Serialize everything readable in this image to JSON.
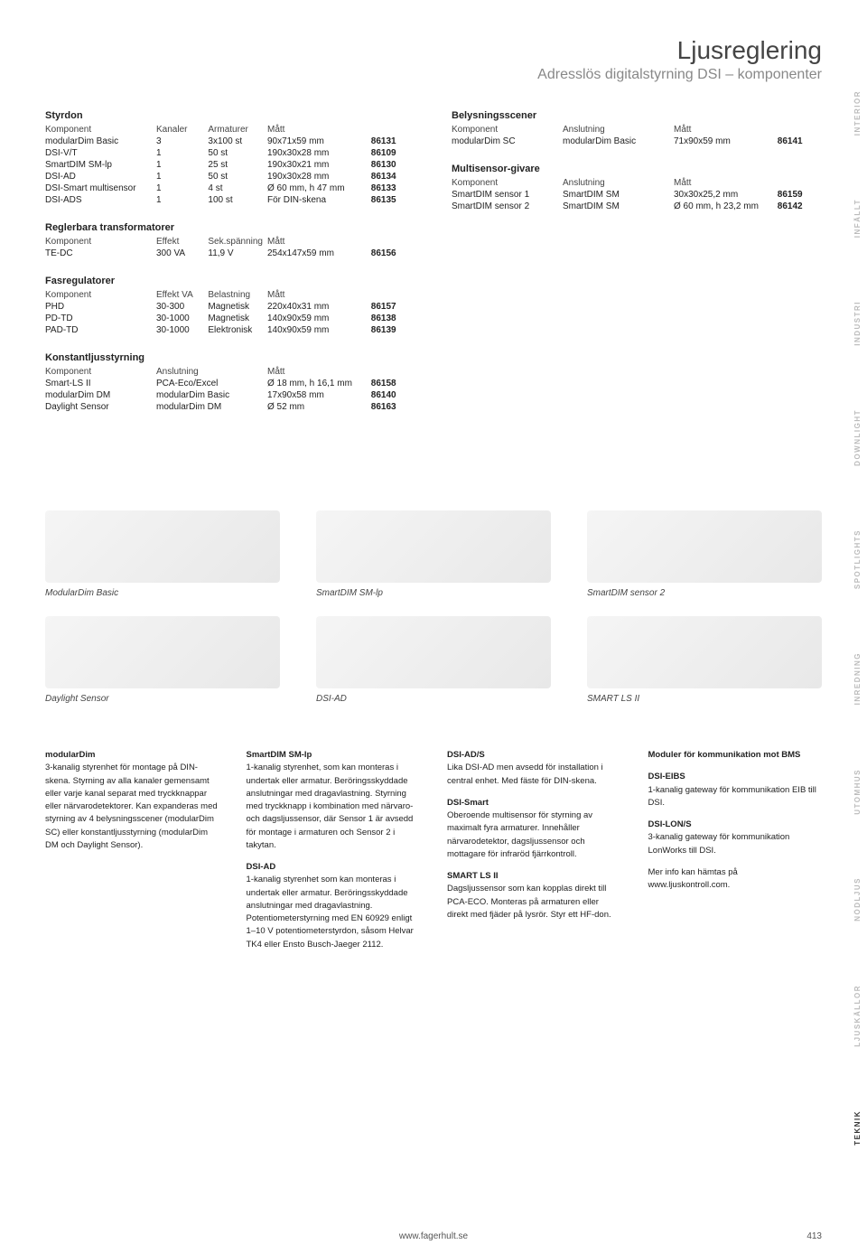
{
  "header": {
    "title": "Ljusreglering",
    "subtitle": "Adresslös digitalstyrning DSI – komponenter"
  },
  "sidebar": [
    "INTERIÖR",
    "INFÄLLT",
    "INDUSTRI",
    "DOWNLIGHT",
    "SPOTLIGHTS",
    "INREDNING",
    "UTOMHUS",
    "NÖDLJUS",
    "LJUSKÄLLOR",
    "TEKNIK"
  ],
  "sidebar_active": "TEKNIK",
  "tables": {
    "styrdon": {
      "title": "Styrdon",
      "headers": [
        "Komponent",
        "Kanaler",
        "Armaturer",
        "Mått",
        ""
      ],
      "rows": [
        [
          "modularDim Basic",
          "3",
          "3x100 st",
          "90x71x59 mm",
          "86131"
        ],
        [
          "DSI-V/T",
          "1",
          "50 st",
          "190x30x28 mm",
          "86109"
        ],
        [
          "SmartDIM SM-lp",
          "1",
          "25 st",
          "190x30x21 mm",
          "86130"
        ],
        [
          "DSI-AD",
          "1",
          "50 st",
          "190x30x28 mm",
          "86134"
        ],
        [
          "DSI-Smart multisensor",
          "1",
          "4 st",
          "Ø 60 mm, h 47 mm",
          "86133"
        ],
        [
          "DSI-ADS",
          "1",
          "100 st",
          "För DIN-skena",
          "86135"
        ]
      ]
    },
    "reglerbara": {
      "title": "Reglerbara transformatorer",
      "headers": [
        "Komponent",
        "Effekt",
        "Sek.spänning",
        "Mått",
        ""
      ],
      "rows": [
        [
          "TE-DC",
          "300 VA",
          "11,9 V",
          "254x147x59 mm",
          "86156"
        ]
      ]
    },
    "fasreg": {
      "title": "Fasregulatorer",
      "headers": [
        "Komponent",
        "Effekt VA",
        "Belastning",
        "Mått",
        ""
      ],
      "rows": [
        [
          "PHD",
          "30-300",
          "Magnetisk",
          "220x40x31 mm",
          "86157"
        ],
        [
          "PD-TD",
          "30-1000",
          "Magnetisk",
          "140x90x59 mm",
          "86138"
        ],
        [
          "PAD-TD",
          "30-1000",
          "Elektronisk",
          "140x90x59 mm",
          "86139"
        ]
      ]
    },
    "konst": {
      "title": "Konstantljusstyrning",
      "headers": [
        "Komponent",
        "Anslutning",
        "Mått",
        ""
      ],
      "rows": [
        [
          "Smart-LS II",
          "PCA-Eco/Excel",
          "Ø 18 mm, h 16,1 mm",
          "86158"
        ],
        [
          "modularDim DM",
          "modularDim Basic",
          "17x90x58 mm",
          "86140"
        ],
        [
          "Daylight Sensor",
          "modularDim DM",
          "Ø 52 mm",
          "86163"
        ]
      ]
    },
    "belysnings": {
      "title": "Belysningsscener",
      "headers": [
        "Komponent",
        "Anslutning",
        "Mått",
        ""
      ],
      "rows": [
        [
          "modularDim SC",
          "modularDim Basic",
          "71x90x59 mm",
          "86141"
        ]
      ]
    },
    "multisensor": {
      "title": "Multisensor-givare",
      "headers": [
        "Komponent",
        "Anslutning",
        "Mått",
        ""
      ],
      "rows": [
        [
          "SmartDIM sensor 1",
          "SmartDIM SM",
          "30x30x25,2 mm",
          "86159"
        ],
        [
          "SmartDIM sensor 2",
          "SmartDIM SM",
          "Ø 60 mm, h 23,2 mm",
          "86142"
        ]
      ]
    }
  },
  "images_row1": [
    "ModularDim Basic",
    "SmartDIM SM-lp",
    "SmartDIM sensor 2"
  ],
  "images_row2": [
    "Daylight Sensor",
    "DSI-AD",
    "SMART LS II"
  ],
  "bottom": [
    [
      {
        "h": "modularDim",
        "t": "3-kanalig styrenhet för montage på DIN-skena. Styrning av alla kanaler gemensamt eller varje kanal separat med tryckknappar eller närvarodetektorer. Kan expanderas med styrning av 4 belysningsscener (modularDim SC) eller konstantljusstyrning (modularDim DM och Daylight Sensor)."
      }
    ],
    [
      {
        "h": "SmartDIM SM-lp",
        "t": "1-kanalig styrenhet, som kan monteras i undertak eller armatur. Beröringsskyddade anslutningar med dragavlastning. Styrning med tryckknapp i kombination med närvaro- och dagsljussensor, där Sensor 1 är avsedd för montage i armaturen och Sensor 2 i takytan."
      },
      {
        "h": "DSI-AD",
        "t": "1-kanalig styrenhet som kan monteras i undertak eller armatur. Beröringsskyddade anslutningar med dragavlastning. Potentiometerstyrning med EN 60929 enligt 1–10 V potentiometerstyrdon, såsom Helvar TK4 eller Ensto Busch-Jaeger 2112."
      }
    ],
    [
      {
        "h": "DSI-AD/S",
        "t": "Lika DSI-AD men avsedd för installation i central enhet. Med fäste för DIN-skena."
      },
      {
        "h": "DSI-Smart",
        "t": "Oberoende multisensor för styrning av maximalt fyra armaturer. Innehåller närvarodetektor, dagsljussensor och mottagare för infraröd fjärrkontroll."
      },
      {
        "h": "SMART LS II",
        "t": "Dagsljussensor som kan kopplas direkt till PCA-ECO. Monteras på armaturen eller direkt med fjäder på lysrör. Styr ett HF-don."
      }
    ],
    [
      {
        "h": "Moduler för kommunikation mot BMS",
        "t": ""
      },
      {
        "h": "DSI-EIBS",
        "t": "1-kanalig gateway för kommunikation EIB till DSI."
      },
      {
        "h": "DSI-LON/S",
        "t": "3-kanalig gateway för kommunikation LonWorks till DSI."
      },
      {
        "h": "",
        "t": "Mer info kan hämtas på www.ljuskontroll.com."
      }
    ]
  ],
  "footer": {
    "url": "www.fagerhult.se",
    "page": "413"
  }
}
